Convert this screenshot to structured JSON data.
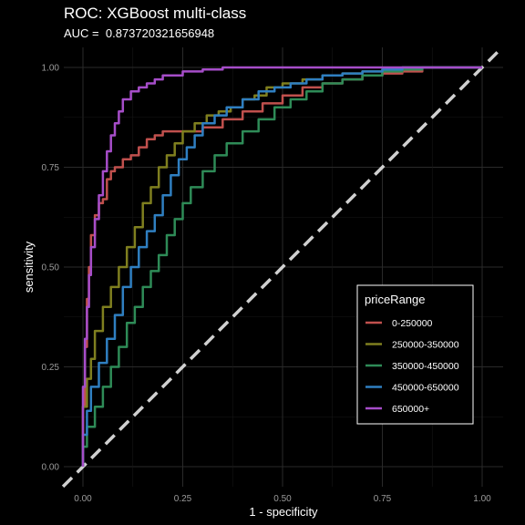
{
  "chart_data": {
    "type": "line",
    "title": "ROC: XGBoost multi-class",
    "subtitle": "AUC =  0.873720321656948",
    "xlabel": "1 - specificity",
    "ylabel": "sensitivity",
    "xlim": [
      0,
      1
    ],
    "ylim": [
      0,
      1
    ],
    "x_ticks": [
      "0.00",
      "0.25",
      "0.50",
      "0.75",
      "1.00"
    ],
    "y_ticks": [
      "0.00",
      "0.25",
      "0.50",
      "0.75",
      "1.00"
    ],
    "grid": true,
    "background": "#000000",
    "legend": {
      "title": "priceRange",
      "position": "right-inside"
    },
    "reference_line": {
      "from": [
        0,
        0
      ],
      "to": [
        1,
        1
      ],
      "style": "dashed",
      "color": "#d0d0d0"
    },
    "series": [
      {
        "name": "0-250000",
        "color": "#c0504d",
        "points": [
          [
            0,
            0
          ],
          [
            0.005,
            0.15
          ],
          [
            0.01,
            0.3
          ],
          [
            0.015,
            0.42
          ],
          [
            0.02,
            0.5
          ],
          [
            0.03,
            0.58
          ],
          [
            0.04,
            0.63
          ],
          [
            0.05,
            0.66
          ],
          [
            0.06,
            0.67
          ],
          [
            0.07,
            0.72
          ],
          [
            0.08,
            0.74
          ],
          [
            0.1,
            0.75
          ],
          [
            0.12,
            0.77
          ],
          [
            0.14,
            0.78
          ],
          [
            0.16,
            0.8
          ],
          [
            0.18,
            0.82
          ],
          [
            0.2,
            0.83
          ],
          [
            0.25,
            0.84
          ],
          [
            0.3,
            0.84
          ],
          [
            0.35,
            0.85
          ],
          [
            0.4,
            0.87
          ],
          [
            0.45,
            0.89
          ],
          [
            0.5,
            0.91
          ],
          [
            0.55,
            0.93
          ],
          [
            0.6,
            0.95
          ],
          [
            0.65,
            0.96
          ],
          [
            0.7,
            0.97
          ],
          [
            0.75,
            0.98
          ],
          [
            0.8,
            0.985
          ],
          [
            0.85,
            0.99
          ],
          [
            0.9,
            1.0
          ],
          [
            1.0,
            1.0
          ]
        ]
      },
      {
        "name": "250000-350000",
        "color": "#7f7f1f",
        "points": [
          [
            0,
            0
          ],
          [
            0.01,
            0.15
          ],
          [
            0.02,
            0.22
          ],
          [
            0.03,
            0.27
          ],
          [
            0.05,
            0.34
          ],
          [
            0.07,
            0.4
          ],
          [
            0.09,
            0.45
          ],
          [
            0.11,
            0.5
          ],
          [
            0.13,
            0.55
          ],
          [
            0.15,
            0.6
          ],
          [
            0.17,
            0.66
          ],
          [
            0.19,
            0.7
          ],
          [
            0.21,
            0.75
          ],
          [
            0.23,
            0.78
          ],
          [
            0.25,
            0.81
          ],
          [
            0.28,
            0.84
          ],
          [
            0.31,
            0.86
          ],
          [
            0.34,
            0.88
          ],
          [
            0.37,
            0.89
          ],
          [
            0.4,
            0.9
          ],
          [
            0.43,
            0.92
          ],
          [
            0.46,
            0.93
          ],
          [
            0.5,
            0.95
          ],
          [
            0.55,
            0.96
          ],
          [
            0.6,
            0.97
          ],
          [
            0.65,
            0.98
          ],
          [
            0.7,
            0.985
          ],
          [
            0.75,
            0.99
          ],
          [
            0.8,
            0.995
          ],
          [
            0.85,
            1.0
          ],
          [
            1.0,
            1.0
          ]
        ]
      },
      {
        "name": "350000-450000",
        "color": "#2e8b57",
        "points": [
          [
            0,
            0
          ],
          [
            0.01,
            0.05
          ],
          [
            0.03,
            0.1
          ],
          [
            0.05,
            0.15
          ],
          [
            0.07,
            0.2
          ],
          [
            0.09,
            0.25
          ],
          [
            0.11,
            0.3
          ],
          [
            0.13,
            0.36
          ],
          [
            0.15,
            0.4
          ],
          [
            0.17,
            0.45
          ],
          [
            0.19,
            0.49
          ],
          [
            0.21,
            0.53
          ],
          [
            0.23,
            0.58
          ],
          [
            0.25,
            0.62
          ],
          [
            0.27,
            0.66
          ],
          [
            0.3,
            0.7
          ],
          [
            0.33,
            0.74
          ],
          [
            0.36,
            0.78
          ],
          [
            0.4,
            0.81
          ],
          [
            0.44,
            0.84
          ],
          [
            0.48,
            0.87
          ],
          [
            0.52,
            0.9
          ],
          [
            0.56,
            0.92
          ],
          [
            0.6,
            0.94
          ],
          [
            0.65,
            0.96
          ],
          [
            0.7,
            0.97
          ],
          [
            0.75,
            0.98
          ],
          [
            0.8,
            0.99
          ],
          [
            0.85,
            0.995
          ],
          [
            0.9,
            1.0
          ],
          [
            1.0,
            1.0
          ]
        ]
      },
      {
        "name": "450000-650000",
        "color": "#2f7fc1",
        "points": [
          [
            0,
            0
          ],
          [
            0.01,
            0.08
          ],
          [
            0.02,
            0.14
          ],
          [
            0.04,
            0.2
          ],
          [
            0.06,
            0.26
          ],
          [
            0.08,
            0.32
          ],
          [
            0.1,
            0.38
          ],
          [
            0.12,
            0.45
          ],
          [
            0.14,
            0.5
          ],
          [
            0.16,
            0.55
          ],
          [
            0.18,
            0.59
          ],
          [
            0.2,
            0.63
          ],
          [
            0.22,
            0.68
          ],
          [
            0.24,
            0.73
          ],
          [
            0.26,
            0.77
          ],
          [
            0.28,
            0.8
          ],
          [
            0.3,
            0.83
          ],
          [
            0.33,
            0.86
          ],
          [
            0.36,
            0.88
          ],
          [
            0.4,
            0.9
          ],
          [
            0.44,
            0.92
          ],
          [
            0.48,
            0.94
          ],
          [
            0.52,
            0.95
          ],
          [
            0.56,
            0.96
          ],
          [
            0.6,
            0.97
          ],
          [
            0.65,
            0.98
          ],
          [
            0.7,
            0.985
          ],
          [
            0.75,
            0.99
          ],
          [
            0.8,
            0.995
          ],
          [
            0.85,
            1.0
          ],
          [
            1.0,
            1.0
          ]
        ]
      },
      {
        "name": "650000+",
        "color": "#a64dc9",
        "points": [
          [
            0,
            0
          ],
          [
            0.005,
            0.2
          ],
          [
            0.01,
            0.32
          ],
          [
            0.015,
            0.4
          ],
          [
            0.02,
            0.48
          ],
          [
            0.03,
            0.55
          ],
          [
            0.04,
            0.62
          ],
          [
            0.05,
            0.68
          ],
          [
            0.06,
            0.74
          ],
          [
            0.07,
            0.79
          ],
          [
            0.08,
            0.83
          ],
          [
            0.09,
            0.86
          ],
          [
            0.1,
            0.89
          ],
          [
            0.12,
            0.92
          ],
          [
            0.14,
            0.94
          ],
          [
            0.16,
            0.95
          ],
          [
            0.18,
            0.96
          ],
          [
            0.2,
            0.97
          ],
          [
            0.25,
            0.98
          ],
          [
            0.3,
            0.99
          ],
          [
            0.35,
            0.995
          ],
          [
            0.4,
            1.0
          ],
          [
            1.0,
            1.0
          ]
        ]
      }
    ]
  }
}
